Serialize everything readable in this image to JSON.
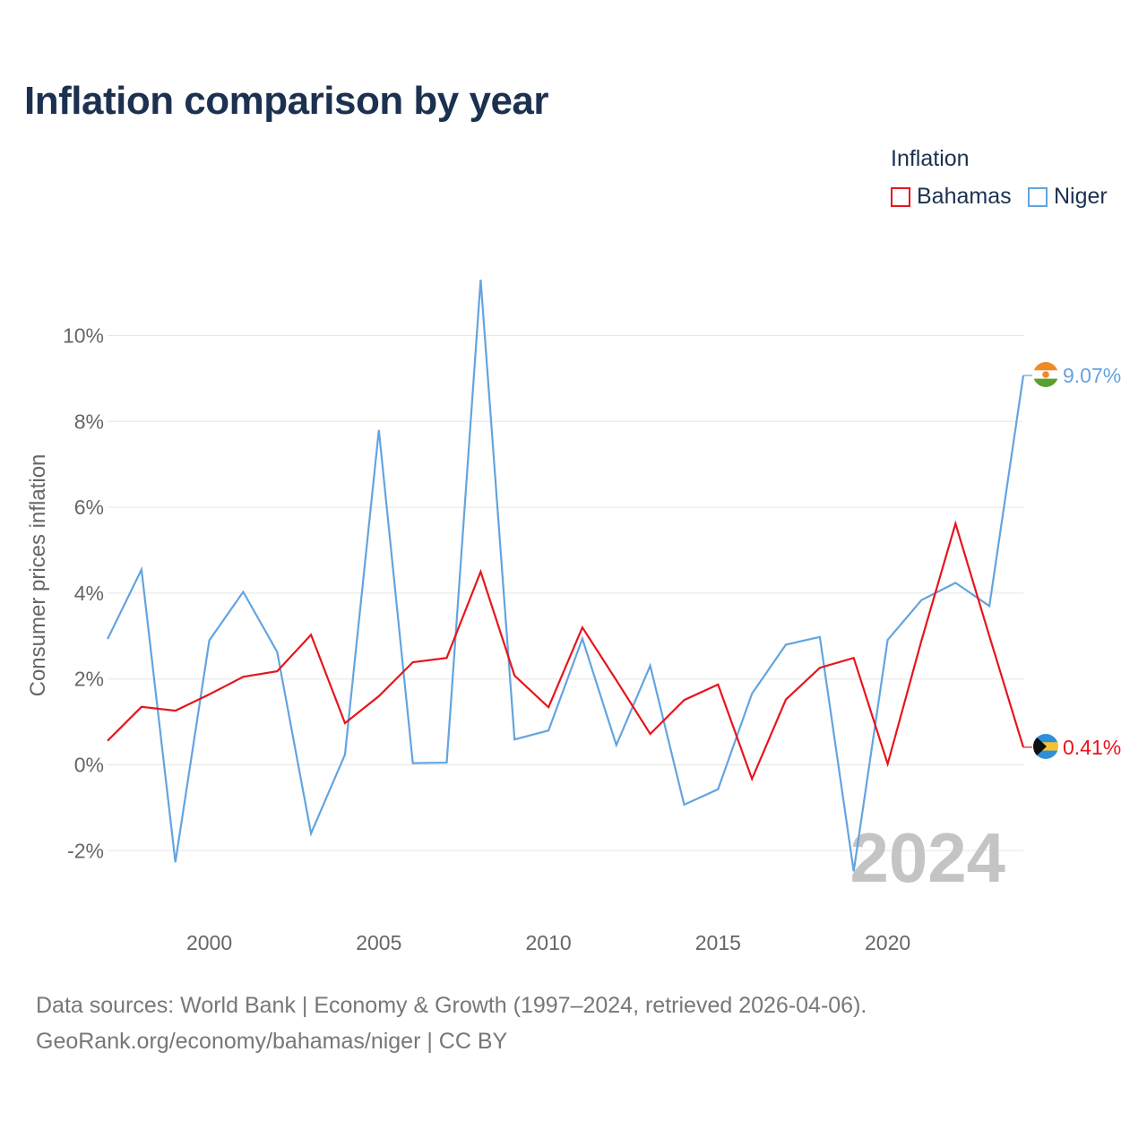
{
  "title": "Inflation comparison by year",
  "legend": {
    "title": "Inflation",
    "items": [
      {
        "name": "Bahamas",
        "color": "#e8141c"
      },
      {
        "name": "Niger",
        "color": "#63a4e0"
      }
    ]
  },
  "source": {
    "line1": "Data sources: World Bank | Economy & Growth (1997–2024, retrieved 2026-04-06).",
    "line2": "GeoRank.org/economy/bahamas/niger | CC BY"
  },
  "colors": {
    "bahamas": "#e8141c",
    "niger": "#63a4e0",
    "grid": "#e6e6e6",
    "title": "#1c3150"
  },
  "chart_data": {
    "type": "line",
    "title": "Inflation comparison by year",
    "xlabel": "",
    "ylabel": "Consumer prices inflation",
    "xlim": [
      1997,
      2024
    ],
    "ylim": [
      -2.5,
      11.3
    ],
    "x_ticks": [
      2000,
      2005,
      2010,
      2015,
      2020
    ],
    "y_ticks": [
      -2,
      0,
      2,
      4,
      6,
      8,
      10
    ],
    "y_tick_labels": [
      "-2%",
      "0%",
      "2%",
      "4%",
      "6%",
      "8%",
      "10%"
    ],
    "grid": true,
    "legend_position": "top-right",
    "current_year_label": "2024",
    "x": [
      1997,
      1998,
      1999,
      2000,
      2001,
      2002,
      2003,
      2004,
      2005,
      2006,
      2007,
      2008,
      2009,
      2010,
      2011,
      2012,
      2013,
      2014,
      2015,
      2016,
      2017,
      2018,
      2019,
      2020,
      2021,
      2022,
      2023,
      2024
    ],
    "series": [
      {
        "name": "Bahamas",
        "color": "#e8141c",
        "end_label": "0.41%",
        "values": [
          0.56,
          1.35,
          1.26,
          1.64,
          2.05,
          2.18,
          3.03,
          0.97,
          1.6,
          2.39,
          2.49,
          4.5,
          2.08,
          1.34,
          3.2,
          1.97,
          0.72,
          1.51,
          1.87,
          -0.33,
          1.52,
          2.26,
          2.49,
          0.02,
          2.9,
          5.62,
          3.0,
          0.41
        ]
      },
      {
        "name": "Niger",
        "color": "#63a4e0",
        "end_label": "9.07%",
        "values": [
          2.93,
          4.55,
          -2.27,
          2.9,
          4.03,
          2.63,
          -1.6,
          0.24,
          7.8,
          0.04,
          0.05,
          11.3,
          0.59,
          0.8,
          2.94,
          0.46,
          2.31,
          -0.93,
          -0.57,
          1.66,
          2.8,
          2.98,
          -2.48,
          2.91,
          3.84,
          4.24,
          3.7,
          9.07
        ]
      }
    ]
  }
}
